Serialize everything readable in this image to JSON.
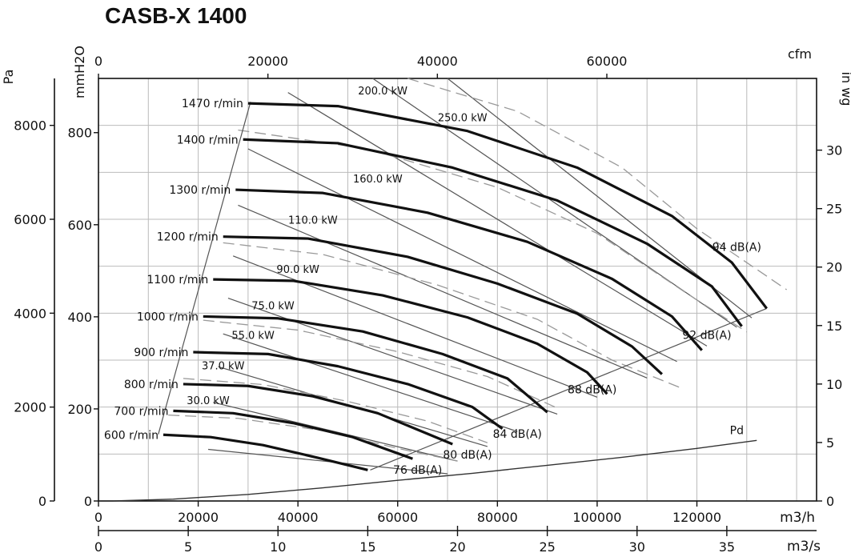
{
  "chart_data": {
    "type": "line",
    "title": "CASB-X  1400",
    "axes": {
      "bottom_primary": {
        "label": "m3/h",
        "range": [
          0,
          144000
        ],
        "ticks": [
          "0",
          "20000",
          "40000",
          "60000",
          "80000",
          "100000",
          "120000"
        ],
        "tick_values": [
          0,
          20000,
          40000,
          60000,
          80000,
          100000,
          120000
        ]
      },
      "bottom_secondary": {
        "label": "m3/s",
        "range": [
          0,
          40
        ],
        "ticks": [
          "0",
          "5",
          "10",
          "15",
          "20",
          "25",
          "30",
          "35"
        ],
        "tick_values": [
          0,
          5,
          10,
          15,
          20,
          25,
          30,
          35
        ]
      },
      "top": {
        "label": "cfm",
        "range": [
          0,
          84755
        ],
        "ticks": [
          "0",
          "20000",
          "40000",
          "60000"
        ],
        "tick_values": [
          0,
          20000,
          40000,
          60000
        ]
      },
      "left_outer": {
        "label": "Pa",
        "range": [
          0,
          9000
        ],
        "ticks": [
          "0",
          "2000",
          "4000",
          "6000",
          "8000"
        ],
        "tick_values": [
          0,
          2000,
          4000,
          6000,
          8000
        ]
      },
      "left_inner": {
        "label": "mmH2O",
        "range": [
          0,
          917.7
        ],
        "ticks": [
          "0",
          "200",
          "400",
          "600",
          "800"
        ],
        "tick_values": [
          0,
          200,
          400,
          600,
          800
        ]
      },
      "right": {
        "label": "in wg",
        "range": [
          0,
          36.13
        ],
        "ticks": [
          "0",
          "5",
          "10",
          "15",
          "20",
          "25",
          "30"
        ],
        "tick_values": [
          0,
          5,
          10,
          15,
          20,
          25,
          30
        ]
      }
    },
    "grid": true,
    "speed_curves": [
      {
        "name": "600 r/min",
        "points": [
          [
            13000,
            1410
          ],
          [
            22500,
            1360
          ],
          [
            33000,
            1190
          ],
          [
            44000,
            920
          ],
          [
            54000,
            660
          ]
        ]
      },
      {
        "name": "700 r/min",
        "points": [
          [
            15000,
            1920
          ],
          [
            27000,
            1870
          ],
          [
            39000,
            1660
          ],
          [
            51000,
            1360
          ],
          [
            63000,
            900
          ]
        ]
      },
      {
        "name": "800 r/min",
        "points": [
          [
            17000,
            2490
          ],
          [
            30000,
            2450
          ],
          [
            43000,
            2230
          ],
          [
            56000,
            1870
          ],
          [
            71000,
            1210
          ]
        ]
      },
      {
        "name": "900 r/min",
        "points": [
          [
            19000,
            3170
          ],
          [
            34000,
            3130
          ],
          [
            48000,
            2870
          ],
          [
            62000,
            2490
          ],
          [
            75000,
            2000
          ],
          [
            81000,
            1540
          ]
        ]
      },
      {
        "name": "1000 r/min",
        "points": [
          [
            21000,
            3930
          ],
          [
            36000,
            3890
          ],
          [
            53000,
            3610
          ],
          [
            69000,
            3130
          ],
          [
            82000,
            2610
          ],
          [
            90000,
            1890
          ]
        ]
      },
      {
        "name": "1100 r/min",
        "points": [
          [
            23000,
            4720
          ],
          [
            39000,
            4690
          ],
          [
            57000,
            4380
          ],
          [
            74000,
            3910
          ],
          [
            88000,
            3350
          ],
          [
            98000,
            2740
          ],
          [
            102000,
            2280
          ]
        ]
      },
      {
        "name": "1200 r/min",
        "points": [
          [
            25000,
            5630
          ],
          [
            42000,
            5590
          ],
          [
            62000,
            5200
          ],
          [
            80000,
            4630
          ],
          [
            96000,
            3990
          ],
          [
            107000,
            3290
          ],
          [
            113000,
            2700
          ]
        ]
      },
      {
        "name": "1300 r/min",
        "points": [
          [
            27500,
            6630
          ],
          [
            45000,
            6560
          ],
          [
            66000,
            6140
          ],
          [
            86000,
            5520
          ],
          [
            103000,
            4730
          ],
          [
            115000,
            3930
          ],
          [
            121000,
            3210
          ]
        ]
      },
      {
        "name": "1400 r/min",
        "points": [
          [
            29000,
            7700
          ],
          [
            48000,
            7620
          ],
          [
            71000,
            7100
          ],
          [
            92000,
            6400
          ],
          [
            110000,
            5480
          ],
          [
            123000,
            4570
          ],
          [
            129000,
            3720
          ]
        ]
      },
      {
        "name": "1470 r/min",
        "points": [
          [
            30000,
            8470
          ],
          [
            48000,
            8410
          ],
          [
            74000,
            7880
          ],
          [
            96000,
            7100
          ],
          [
            115000,
            6070
          ],
          [
            127000,
            5080
          ],
          [
            134000,
            4100
          ]
        ]
      }
    ],
    "power_labels": [
      "30.0 kW",
      "37.0 kW",
      "55.0 kW",
      "75.0 kW",
      "90.0 kW",
      "110.0 kW",
      "160.0 kW",
      "200.0 kW",
      "250.0 kW"
    ],
    "sound_labels": [
      "76 dB(A)",
      "80 dB(A)",
      "84 dB(A)",
      "88 dB(A)",
      "92 dB(A)",
      "94 dB(A)"
    ],
    "pd_curve": {
      "name": "Pd",
      "points": [
        [
          0,
          0
        ],
        [
          10000,
          10
        ],
        [
          20000,
          40
        ],
        [
          30000,
          90
        ],
        [
          40000,
          160
        ],
        [
          50000,
          250
        ],
        [
          60000,
          360
        ],
        [
          70000,
          490
        ],
        [
          80000,
          640
        ],
        [
          90000,
          810
        ],
        [
          100000,
          1000
        ],
        [
          110000,
          1210
        ],
        [
          120000,
          1440
        ],
        [
          134000,
          1010
        ]
      ]
    }
  }
}
